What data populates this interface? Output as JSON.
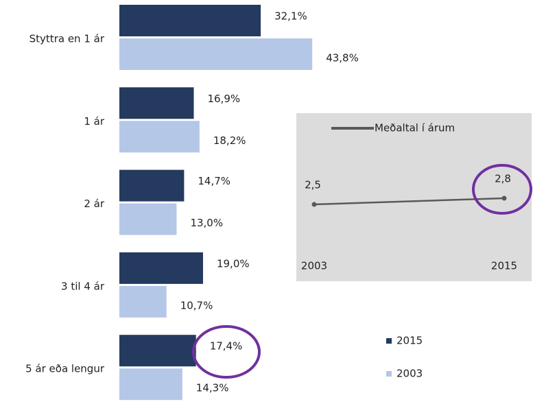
{
  "chart_data": [
    {
      "type": "bar",
      "orientation": "horizontal",
      "categories": [
        "Styttra en 1 ár",
        "1 ár",
        "2 ár",
        "3 til 4 ár",
        "5 ár eða lengur"
      ],
      "series": [
        {
          "name": "2015",
          "color": "#243a5e",
          "values": [
            32.1,
            16.9,
            14.7,
            19.0,
            17.4
          ],
          "value_labels": [
            "32,1%",
            "16,9%",
            "14,7%",
            "19,0%",
            "17,4%"
          ]
        },
        {
          "name": "2003",
          "color": "#b4c7e7",
          "values": [
            43.8,
            18.2,
            13.0,
            10.7,
            14.3
          ],
          "value_labels": [
            "43,8%",
            "18,2%",
            "13,0%",
            "10,7%",
            "14,3%"
          ]
        }
      ]
    },
    {
      "type": "line",
      "categories": [
        "2003",
        "2015"
      ],
      "series": [
        {
          "name": "Meðaltal í árum",
          "color": "#595959",
          "values": [
            2.5,
            2.8
          ],
          "value_labels": [
            "2,5",
            "2,8"
          ]
        }
      ]
    }
  ]
}
